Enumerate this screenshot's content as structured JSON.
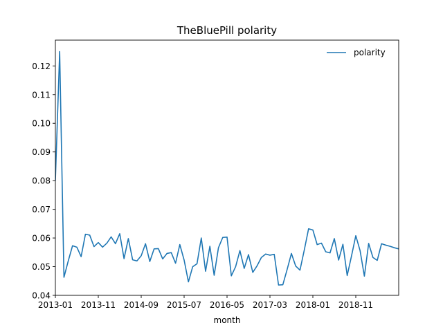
{
  "chart_data": {
    "type": "line",
    "title": "TheBluePill polarity",
    "xlabel": "month",
    "ylabel": "",
    "x_tick_labels": [
      "2013-01",
      "2013-11",
      "2014-09",
      "2015-07",
      "2016-05",
      "2017-03",
      "2018-01",
      "2018-11"
    ],
    "x_range": [
      "2013-01",
      "2019-09"
    ],
    "ylim": [
      0.04,
      0.129
    ],
    "yticks": [
      0.04,
      0.05,
      0.06,
      0.07,
      0.08,
      0.09,
      0.1,
      0.11,
      0.12
    ],
    "ytick_labels": [
      "0.04",
      "0.05",
      "0.06",
      "0.07",
      "0.08",
      "0.09",
      "0.10",
      "0.11",
      "0.12"
    ],
    "grid": false,
    "legend_position": "top-right",
    "series": [
      {
        "name": "polarity",
        "color": "#1f77b4",
        "x": [
          "2013-01",
          "2013-02",
          "2013-03",
          "2013-04",
          "2013-05",
          "2013-06",
          "2013-07",
          "2013-08",
          "2013-09",
          "2013-10",
          "2013-11",
          "2013-12",
          "2014-01",
          "2014-02",
          "2014-03",
          "2014-04",
          "2014-05",
          "2014-06",
          "2014-07",
          "2014-08",
          "2014-09",
          "2014-10",
          "2014-11",
          "2014-12",
          "2015-01",
          "2015-02",
          "2015-03",
          "2015-04",
          "2015-05",
          "2015-06",
          "2015-07",
          "2015-08",
          "2015-09",
          "2015-10",
          "2015-11",
          "2015-12",
          "2016-01",
          "2016-02",
          "2016-03",
          "2016-04",
          "2016-05",
          "2016-06",
          "2016-07",
          "2016-08",
          "2016-09",
          "2016-10",
          "2016-11",
          "2016-12",
          "2017-01",
          "2017-02",
          "2017-03",
          "2017-04",
          "2017-05",
          "2017-06",
          "2017-07",
          "2017-08",
          "2017-09",
          "2017-10",
          "2017-11",
          "2017-12",
          "2018-01",
          "2018-02",
          "2018-03",
          "2018-04",
          "2018-05",
          "2018-06",
          "2018-07",
          "2018-08",
          "2018-09",
          "2018-10",
          "2018-11",
          "2018-12",
          "2019-01",
          "2019-02",
          "2019-03",
          "2019-04",
          "2019-05",
          "2019-06",
          "2019-07",
          "2019-08",
          "2019-09"
        ],
        "values": [
          0.08,
          0.125,
          0.0463,
          0.052,
          0.0573,
          0.0568,
          0.0535,
          0.0613,
          0.061,
          0.057,
          0.0584,
          0.0568,
          0.0582,
          0.0604,
          0.058,
          0.0615,
          0.0528,
          0.0598,
          0.0524,
          0.052,
          0.0538,
          0.058,
          0.0518,
          0.0562,
          0.0563,
          0.0527,
          0.0546,
          0.0549,
          0.0512,
          0.0577,
          0.0523,
          0.0447,
          0.05,
          0.051,
          0.06,
          0.0484,
          0.0571,
          0.047,
          0.0566,
          0.0602,
          0.0603,
          0.0468,
          0.05,
          0.0556,
          0.0494,
          0.0542,
          0.048,
          0.0503,
          0.0532,
          0.0544,
          0.054,
          0.0543,
          0.0436,
          0.0437,
          0.049,
          0.0546,
          0.0502,
          0.0488,
          0.0558,
          0.0632,
          0.0628,
          0.0577,
          0.0582,
          0.0552,
          0.0548,
          0.0598,
          0.0523,
          0.0578,
          0.0469,
          0.0537,
          0.0608,
          0.0556,
          0.0467,
          0.0581,
          0.0532,
          0.0522,
          0.058,
          0.0575,
          0.0571,
          0.0566,
          0.0562
        ]
      }
    ]
  }
}
